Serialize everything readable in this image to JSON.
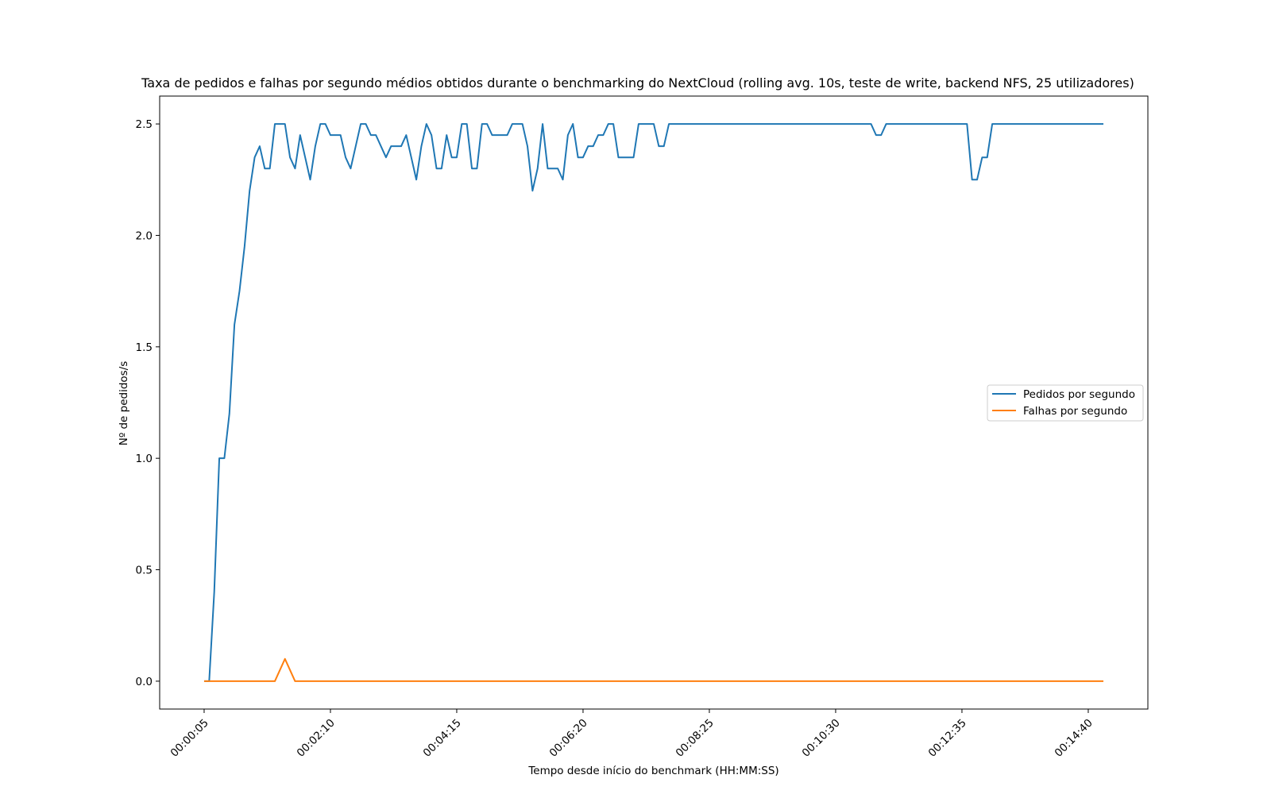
{
  "chart_data": {
    "type": "line",
    "title": "Taxa de pedidos e falhas por segundo médios obtidos durante o benchmarking do NextCloud (rolling avg. 10s, teste de write, backend NFS, 25 utilizadores)",
    "xlabel": "Tempo desde início do benchmark (HH:MM:SS)",
    "ylabel": "Nº de pedidos/s",
    "x_unit": "seconds since benchmark start",
    "x_ticks": [
      {
        "value": 5,
        "label": "00:00:05"
      },
      {
        "value": 130,
        "label": "00:02:10"
      },
      {
        "value": 255,
        "label": "00:04:15"
      },
      {
        "value": 380,
        "label": "00:06:20"
      },
      {
        "value": 505,
        "label": "00:08:25"
      },
      {
        "value": 630,
        "label": "00:10:30"
      },
      {
        "value": 755,
        "label": "00:12:35"
      },
      {
        "value": 880,
        "label": "00:14:40"
      }
    ],
    "y_ticks": [
      {
        "value": 0.0,
        "label": "0.0"
      },
      {
        "value": 0.5,
        "label": "0.5"
      },
      {
        "value": 1.0,
        "label": "1.0"
      },
      {
        "value": 1.5,
        "label": "1.5"
      },
      {
        "value": 2.0,
        "label": "2.0"
      },
      {
        "value": 2.5,
        "label": "2.5"
      }
    ],
    "xlim": [
      -39,
      939
    ],
    "ylim": [
      -0.125,
      2.625
    ],
    "grid": false,
    "legend_position": "center-right",
    "series": [
      {
        "name": "Pedidos por segundo",
        "color": "#1f77b4",
        "points": [
          [
            5,
            0
          ],
          [
            10,
            0
          ],
          [
            15,
            0.4
          ],
          [
            20,
            1
          ],
          [
            25,
            1
          ],
          [
            30,
            1.2
          ],
          [
            35,
            1.6
          ],
          [
            40,
            1.75
          ],
          [
            45,
            1.95
          ],
          [
            50,
            2.2
          ],
          [
            55,
            2.35
          ],
          [
            60,
            2.4
          ],
          [
            65,
            2.3
          ],
          [
            70,
            2.3
          ],
          [
            75,
            2.5
          ],
          [
            80,
            2.5
          ],
          [
            85,
            2.5
          ],
          [
            90,
            2.35
          ],
          [
            95,
            2.3
          ],
          [
            100,
            2.45
          ],
          [
            105,
            2.35
          ],
          [
            110,
            2.25
          ],
          [
            115,
            2.4
          ],
          [
            120,
            2.5
          ],
          [
            125,
            2.5
          ],
          [
            130,
            2.45
          ],
          [
            135,
            2.45
          ],
          [
            140,
            2.45
          ],
          [
            145,
            2.35
          ],
          [
            150,
            2.3
          ],
          [
            155,
            2.4
          ],
          [
            160,
            2.5
          ],
          [
            165,
            2.5
          ],
          [
            170,
            2.45
          ],
          [
            175,
            2.45
          ],
          [
            180,
            2.4
          ],
          [
            185,
            2.35
          ],
          [
            190,
            2.4
          ],
          [
            195,
            2.4
          ],
          [
            200,
            2.4
          ],
          [
            205,
            2.45
          ],
          [
            210,
            2.35
          ],
          [
            215,
            2.25
          ],
          [
            220,
            2.4
          ],
          [
            225,
            2.5
          ],
          [
            230,
            2.45
          ],
          [
            235,
            2.3
          ],
          [
            240,
            2.3
          ],
          [
            245,
            2.45
          ],
          [
            250,
            2.35
          ],
          [
            255,
            2.35
          ],
          [
            260,
            2.5
          ],
          [
            265,
            2.5
          ],
          [
            270,
            2.3
          ],
          [
            275,
            2.3
          ],
          [
            280,
            2.5
          ],
          [
            285,
            2.5
          ],
          [
            290,
            2.45
          ],
          [
            295,
            2.45
          ],
          [
            300,
            2.45
          ],
          [
            305,
            2.45
          ],
          [
            310,
            2.5
          ],
          [
            315,
            2.5
          ],
          [
            320,
            2.5
          ],
          [
            325,
            2.4
          ],
          [
            330,
            2.2
          ],
          [
            335,
            2.3
          ],
          [
            340,
            2.5
          ],
          [
            345,
            2.3
          ],
          [
            350,
            2.3
          ],
          [
            355,
            2.3
          ],
          [
            360,
            2.25
          ],
          [
            365,
            2.45
          ],
          [
            370,
            2.5
          ],
          [
            375,
            2.35
          ],
          [
            380,
            2.35
          ],
          [
            385,
            2.4
          ],
          [
            390,
            2.4
          ],
          [
            395,
            2.45
          ],
          [
            400,
            2.45
          ],
          [
            405,
            2.5
          ],
          [
            410,
            2.5
          ],
          [
            415,
            2.35
          ],
          [
            420,
            2.35
          ],
          [
            425,
            2.35
          ],
          [
            430,
            2.35
          ],
          [
            435,
            2.5
          ],
          [
            440,
            2.5
          ],
          [
            445,
            2.5
          ],
          [
            450,
            2.5
          ],
          [
            455,
            2.4
          ],
          [
            460,
            2.4
          ],
          [
            465,
            2.5
          ],
          [
            470,
            2.5
          ],
          [
            665,
            2.5
          ],
          [
            670,
            2.45
          ],
          [
            675,
            2.45
          ],
          [
            680,
            2.5
          ],
          [
            685,
            2.5
          ],
          [
            760,
            2.5
          ],
          [
            765,
            2.25
          ],
          [
            770,
            2.25
          ],
          [
            775,
            2.35
          ],
          [
            780,
            2.35
          ],
          [
            785,
            2.5
          ],
          [
            790,
            2.5
          ],
          [
            895,
            2.5
          ]
        ]
      },
      {
        "name": "Falhas por segundo",
        "color": "#ff7f0e",
        "points": [
          [
            5,
            0
          ],
          [
            75,
            0
          ],
          [
            85,
            0.1
          ],
          [
            95,
            0
          ],
          [
            895,
            0
          ]
        ]
      }
    ]
  }
}
